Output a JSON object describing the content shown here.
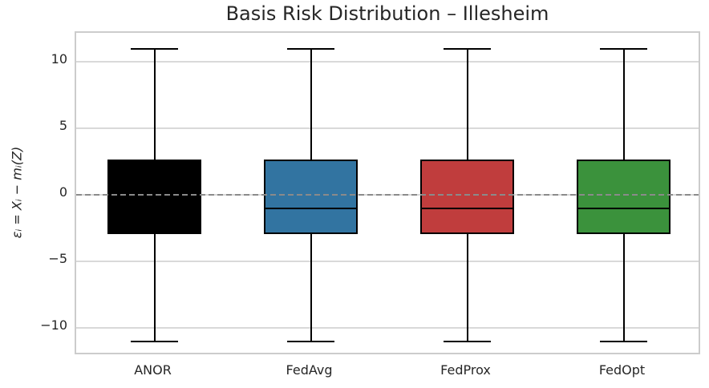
{
  "chart_data": {
    "type": "boxplot",
    "title": "Basis Risk Distribution – Illesheim",
    "ylabel": "εᵢ = Xᵢ − mᵢ(Z)",
    "xlabel": "",
    "categories": [
      "ANOR",
      "FedAvg",
      "FedProx",
      "FedOpt"
    ],
    "series": [
      {
        "name": "ANOR",
        "color": "#000000",
        "whisker_low": -11,
        "q1": -2.95,
        "median": -1.0,
        "q3": 2.7,
        "whisker_high": 11
      },
      {
        "name": "FedAvg",
        "color": "#3274A1",
        "whisker_low": -11,
        "q1": -2.95,
        "median": -1.0,
        "q3": 2.7,
        "whisker_high": 11
      },
      {
        "name": "FedProx",
        "color": "#C03D3D",
        "whisker_low": -11,
        "q1": -2.95,
        "median": -1.0,
        "q3": 2.7,
        "whisker_high": 11
      },
      {
        "name": "FedOpt",
        "color": "#3B923C",
        "whisker_low": -11,
        "q1": -2.95,
        "median": -1.0,
        "q3": 2.7,
        "whisker_high": 11
      }
    ],
    "yticks": [
      {
        "v": -10,
        "label": "−10"
      },
      {
        "v": -5,
        "label": "−5"
      },
      {
        "v": 0,
        "label": "0"
      },
      {
        "v": 5,
        "label": "5"
      },
      {
        "v": 10,
        "label": "10"
      }
    ],
    "ylim": [
      -12.1,
      12.2
    ],
    "grid": true,
    "zero_line": {
      "y": 0,
      "style": "dashed",
      "color": "#8a8a8a"
    },
    "colors": {
      "box_edge": "#000000",
      "grid": "#d9d9d9",
      "spine": "#cccccc",
      "text": "#262626",
      "background": "#ffffff"
    }
  }
}
